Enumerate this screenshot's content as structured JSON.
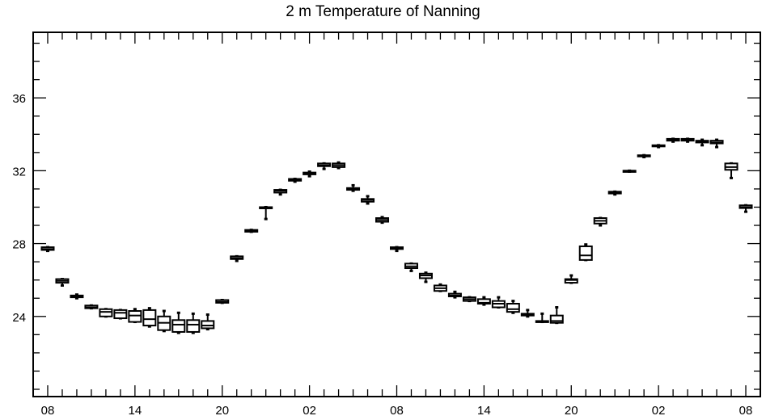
{
  "chart_data": {
    "type": "box",
    "title": "2 m Temperature of Nanning",
    "xlabel": "",
    "ylabel": "",
    "ylim": [
      19.6,
      39.6
    ],
    "yticks": [
      24,
      28,
      32,
      36
    ],
    "ytick_labels": [
      "24",
      "28",
      "32",
      "36"
    ],
    "x_tick_positions": [
      0,
      6,
      12,
      18,
      24,
      30,
      36,
      42,
      48
    ],
    "x_tick_labels": [
      "08",
      "14",
      "20",
      "02",
      "08",
      "14",
      "20",
      "02",
      "08"
    ],
    "x_range": [
      -1,
      49
    ],
    "boxes": [
      {
        "x": 0,
        "low": 27.6,
        "q1": 27.65,
        "med": 27.7,
        "q3": 27.8,
        "high": 27.8
      },
      {
        "x": 1,
        "low": 25.7,
        "q1": 25.85,
        "med": 25.95,
        "q3": 26.05,
        "high": 26.05
      },
      {
        "x": 2,
        "low": 25.0,
        "q1": 25.05,
        "med": 25.1,
        "q3": 25.15,
        "high": 25.2
      },
      {
        "x": 3,
        "low": 24.45,
        "q1": 24.45,
        "med": 24.5,
        "q3": 24.6,
        "high": 24.6
      },
      {
        "x": 4,
        "low": 24.0,
        "q1": 24.0,
        "med": 24.25,
        "q3": 24.4,
        "high": 24.4
      },
      {
        "x": 5,
        "low": 23.9,
        "q1": 23.9,
        "med": 24.2,
        "q3": 24.35,
        "high": 24.35
      },
      {
        "x": 6,
        "low": 23.7,
        "q1": 23.7,
        "med": 24.05,
        "q3": 24.3,
        "high": 24.4
      },
      {
        "x": 7,
        "low": 23.45,
        "q1": 23.5,
        "med": 23.85,
        "q3": 24.35,
        "high": 24.45
      },
      {
        "x": 8,
        "low": 23.2,
        "q1": 23.25,
        "med": 23.65,
        "q3": 24.0,
        "high": 24.3
      },
      {
        "x": 9,
        "low": 23.1,
        "q1": 23.15,
        "med": 23.55,
        "q3": 23.8,
        "high": 24.2
      },
      {
        "x": 10,
        "low": 23.1,
        "q1": 23.15,
        "med": 23.55,
        "q3": 23.8,
        "high": 24.15
      },
      {
        "x": 11,
        "low": 23.3,
        "q1": 23.35,
        "med": 23.5,
        "q3": 23.75,
        "high": 24.1
      },
      {
        "x": 12,
        "low": 24.75,
        "q1": 24.75,
        "med": 24.8,
        "q3": 24.9,
        "high": 24.9
      },
      {
        "x": 13,
        "low": 27.05,
        "q1": 27.15,
        "med": 27.2,
        "q3": 27.3,
        "high": 27.3
      },
      {
        "x": 14,
        "low": 28.65,
        "q1": 28.65,
        "med": 28.7,
        "q3": 28.75,
        "high": 28.75
      },
      {
        "x": 15,
        "low": 29.35,
        "q1": 29.95,
        "med": 29.95,
        "q3": 30.0,
        "high": 30.0
      },
      {
        "x": 16,
        "low": 30.7,
        "q1": 30.8,
        "med": 30.9,
        "q3": 30.95,
        "high": 30.95
      },
      {
        "x": 17,
        "low": 31.4,
        "q1": 31.45,
        "med": 31.5,
        "q3": 31.55,
        "high": 31.55
      },
      {
        "x": 18,
        "low": 31.7,
        "q1": 31.8,
        "med": 31.85,
        "q3": 31.9,
        "high": 31.95
      },
      {
        "x": 19,
        "low": 32.1,
        "q1": 32.25,
        "med": 32.3,
        "q3": 32.4,
        "high": 32.4
      },
      {
        "x": 20,
        "low": 32.15,
        "q1": 32.2,
        "med": 32.3,
        "q3": 32.4,
        "high": 32.45
      },
      {
        "x": 21,
        "low": 30.9,
        "q1": 30.95,
        "med": 31.0,
        "q3": 31.05,
        "high": 31.2
      },
      {
        "x": 22,
        "low": 30.2,
        "q1": 30.3,
        "med": 30.4,
        "q3": 30.45,
        "high": 30.6
      },
      {
        "x": 23,
        "low": 29.15,
        "q1": 29.2,
        "med": 29.3,
        "q3": 29.4,
        "high": 29.45
      },
      {
        "x": 24,
        "low": 27.6,
        "q1": 27.7,
        "med": 27.75,
        "q3": 27.8,
        "high": 27.8
      },
      {
        "x": 25,
        "low": 26.5,
        "q1": 26.65,
        "med": 26.75,
        "q3": 26.9,
        "high": 26.9
      },
      {
        "x": 26,
        "low": 25.9,
        "q1": 26.1,
        "med": 26.25,
        "q3": 26.35,
        "high": 26.4
      },
      {
        "x": 27,
        "low": 25.4,
        "q1": 25.4,
        "med": 25.55,
        "q3": 25.7,
        "high": 25.75
      },
      {
        "x": 28,
        "low": 25.05,
        "q1": 25.1,
        "med": 25.15,
        "q3": 25.25,
        "high": 25.35
      },
      {
        "x": 29,
        "low": 24.85,
        "q1": 24.85,
        "med": 24.95,
        "q3": 25.05,
        "high": 25.05
      },
      {
        "x": 30,
        "low": 24.65,
        "q1": 24.7,
        "med": 24.75,
        "q3": 24.95,
        "high": 25.05
      },
      {
        "x": 31,
        "low": 24.5,
        "q1": 24.5,
        "med": 24.7,
        "q3": 24.85,
        "high": 25.05
      },
      {
        "x": 32,
        "low": 24.2,
        "q1": 24.25,
        "med": 24.4,
        "q3": 24.7,
        "high": 24.85
      },
      {
        "x": 33,
        "low": 24.0,
        "q1": 24.05,
        "med": 24.1,
        "q3": 24.15,
        "high": 24.35
      },
      {
        "x": 34,
        "low": 23.7,
        "q1": 23.7,
        "med": 23.7,
        "q3": 23.75,
        "high": 24.15
      },
      {
        "x": 35,
        "low": 23.65,
        "q1": 23.65,
        "med": 23.75,
        "q3": 24.05,
        "high": 24.5
      },
      {
        "x": 36,
        "low": 25.85,
        "q1": 25.85,
        "med": 26.0,
        "q3": 26.05,
        "high": 26.25
      },
      {
        "x": 37,
        "low": 27.1,
        "q1": 27.1,
        "med": 27.35,
        "q3": 27.85,
        "high": 27.95
      },
      {
        "x": 38,
        "low": 29.0,
        "q1": 29.1,
        "med": 29.25,
        "q3": 29.4,
        "high": 29.4
      },
      {
        "x": 39,
        "low": 30.7,
        "q1": 30.75,
        "med": 30.8,
        "q3": 30.85,
        "high": 30.85
      },
      {
        "x": 40,
        "low": 31.95,
        "q1": 31.95,
        "med": 32.0,
        "q3": 32.0,
        "high": 32.0
      },
      {
        "x": 41,
        "low": 32.75,
        "q1": 32.8,
        "med": 32.8,
        "q3": 32.85,
        "high": 32.85
      },
      {
        "x": 42,
        "low": 33.3,
        "q1": 33.35,
        "med": 33.35,
        "q3": 33.4,
        "high": 33.4
      },
      {
        "x": 43,
        "low": 33.6,
        "q1": 33.65,
        "med": 33.7,
        "q3": 33.75,
        "high": 33.75
      },
      {
        "x": 44,
        "low": 33.6,
        "q1": 33.65,
        "med": 33.7,
        "q3": 33.75,
        "high": 33.75
      },
      {
        "x": 45,
        "low": 33.4,
        "q1": 33.55,
        "med": 33.6,
        "q3": 33.65,
        "high": 33.7
      },
      {
        "x": 46,
        "low": 33.3,
        "q1": 33.5,
        "med": 33.55,
        "q3": 33.65,
        "high": 33.7
      },
      {
        "x": 47,
        "low": 31.6,
        "q1": 32.05,
        "med": 32.2,
        "q3": 32.4,
        "high": 32.4
      },
      {
        "x": 48,
        "low": 29.75,
        "q1": 29.95,
        "med": 30.0,
        "q3": 30.1,
        "high": 30.1
      }
    ]
  }
}
